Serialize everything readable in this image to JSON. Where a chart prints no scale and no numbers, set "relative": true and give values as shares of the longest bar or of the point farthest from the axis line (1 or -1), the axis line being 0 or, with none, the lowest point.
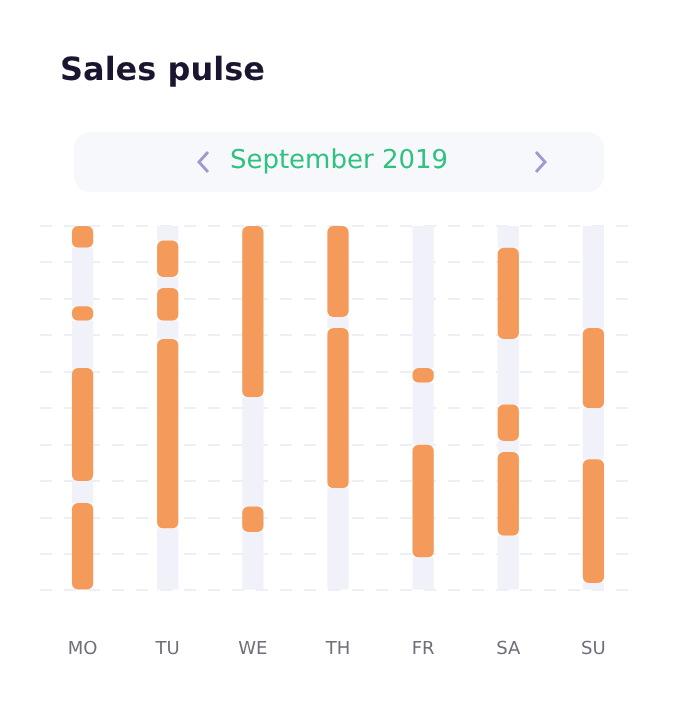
{
  "chart_data": {
    "type": "bar",
    "title": "Sales pulse",
    "subtitle": "September 2019",
    "relative": true,
    "stacked": true,
    "grid": "y",
    "legend": false,
    "categories": [
      "MO",
      "TU",
      "WE",
      "TH",
      "FR",
      "SA",
      "SU"
    ],
    "series": [
      {
        "color": "#f1f1f9",
        "values": [
          null,
          0.17,
          0.16,
          0.28,
          0.09,
          0.15,
          0.02
        ]
      },
      {
        "color": "#f49b5b",
        "values": [
          0.24,
          0.52,
          0.07,
          0.44,
          0.31,
          0.23,
          0.34
        ]
      },
      {
        "color": "#f1f1f9",
        "values": [
          0.06,
          0.05,
          0.3,
          0.03,
          0.17,
          0.03,
          0.14
        ]
      },
      {
        "color": "#f49b5b",
        "values": [
          0.31,
          0.09,
          0.47,
          0.25,
          0.04,
          0.1,
          0.22
        ]
      },
      {
        "color": "#f1f1f9",
        "values": [
          0.13,
          0.03,
          null,
          null,
          0.39,
          0.18,
          0.28
        ]
      },
      {
        "color": "#f49b5b",
        "values": [
          0.04,
          0.1,
          null,
          null,
          null,
          0.25,
          null
        ]
      },
      {
        "color": "#f1f1f9",
        "values": [
          0.16,
          0.04,
          null,
          null,
          null,
          0.06,
          null
        ]
      },
      {
        "color": "#f49b5b",
        "values": [
          0.06,
          null,
          null,
          null,
          null,
          null,
          null
        ]
      }
    ]
  }
}
